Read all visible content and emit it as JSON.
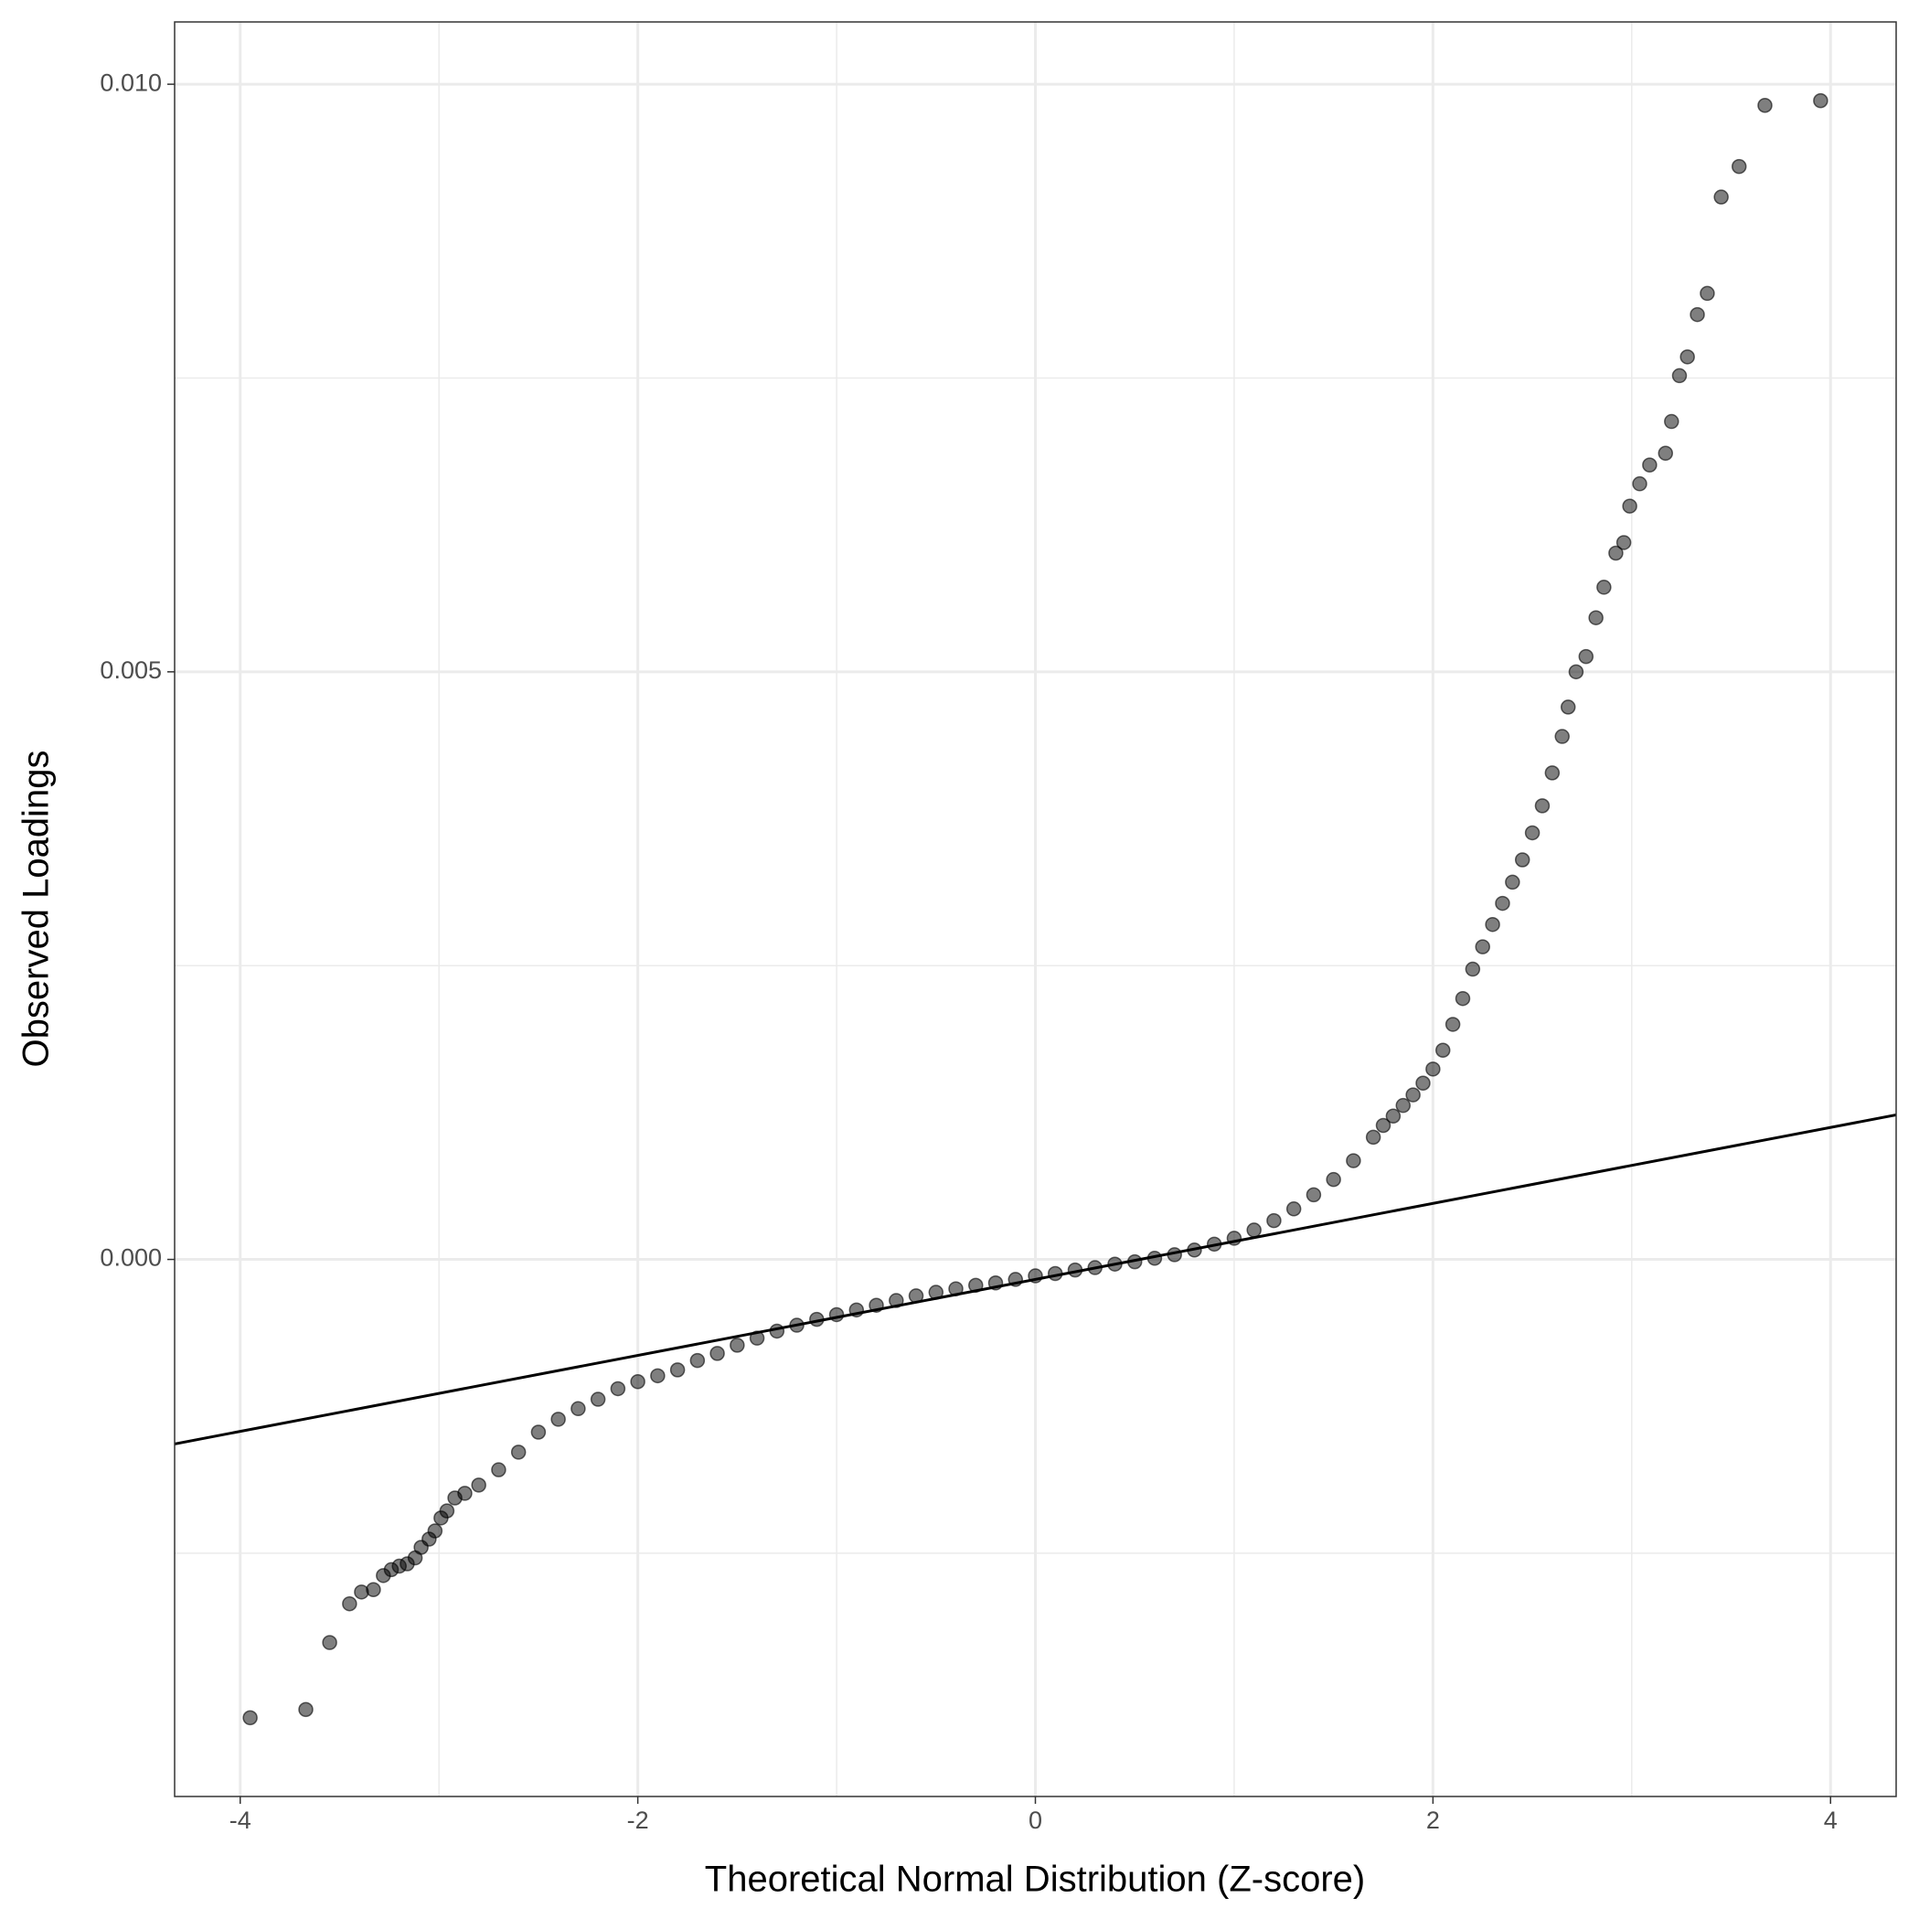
{
  "chart_data": {
    "type": "scatter",
    "x_label": "Theoretical Normal Distribution (Z-score)",
    "y_label": "Observed Loadings",
    "xlim": [
      -4.33,
      4.33
    ],
    "ylim": [
      -0.00457,
      0.01053
    ],
    "xticks": [
      -4,
      -2,
      0,
      2,
      4
    ],
    "yticks": [
      {
        "value": 0,
        "label": "0.000"
      },
      {
        "value": 0.005,
        "label": "0.005"
      },
      {
        "value": 0.01,
        "label": "0.010"
      }
    ],
    "x_minor_grid": [
      -3,
      -1,
      1,
      3
    ],
    "y_minor_grid": [
      -0.0025,
      0.0025,
      0.0075
    ],
    "grid": true,
    "color": "#000000",
    "reference_line": {
      "x": [
        -4.33,
        4.33
      ],
      "y": [
        -0.00157,
        0.00123
      ],
      "color": "#000000"
    },
    "x": [
      -3.95,
      -3.67,
      -3.55,
      -3.45,
      -3.39,
      -3.33,
      -3.28,
      -3.24,
      -3.2,
      -3.16,
      -3.12,
      -3.09,
      -3.05,
      -3.02,
      -2.99,
      -2.96,
      -2.92,
      -2.87,
      -2.8,
      -2.7,
      -2.6,
      -2.5,
      -2.4,
      -2.3,
      -2.2,
      -2.1,
      -2.0,
      -1.9,
      -1.8,
      -1.7,
      -1.6,
      -1.5,
      -1.4,
      -1.3,
      -1.2,
      -1.1,
      -1.0,
      -0.9,
      -0.8,
      -0.7,
      -0.6,
      -0.5,
      -0.4,
      -0.3,
      -0.2,
      -0.1,
      0,
      0.1,
      0.2,
      0.3,
      0.4,
      0.5,
      0.6,
      0.7,
      0.8,
      0.9,
      1.0,
      1.1,
      1.2,
      1.3,
      1.4,
      1.5,
      1.6,
      1.7,
      1.75,
      1.8,
      1.85,
      1.9,
      1.95,
      2.0,
      2.05,
      2.1,
      2.15,
      2.2,
      2.25,
      2.3,
      2.35,
      2.4,
      2.45,
      2.5,
      2.55,
      2.6,
      2.65,
      2.68,
      2.72,
      2.77,
      2.82,
      2.86,
      2.92,
      2.96,
      2.99,
      3.04,
      3.09,
      3.17,
      3.2,
      3.24,
      3.28,
      3.33,
      3.38,
      3.45,
      3.54,
      3.67,
      3.95
    ],
    "values": [
      -0.0039,
      -0.00383,
      -0.00326,
      -0.00293,
      -0.00283,
      -0.00281,
      -0.00269,
      -0.00264,
      -0.00261,
      -0.00259,
      -0.00254,
      -0.00245,
      -0.00238,
      -0.00231,
      -0.0022,
      -0.00214,
      -0.00203,
      -0.00199,
      -0.00192,
      -0.00179,
      -0.00164,
      -0.00147,
      -0.00136,
      -0.00127,
      -0.00119,
      -0.0011,
      -0.00104,
      -0.00099,
      -0.00094,
      -0.00086,
      -0.0008,
      -0.00073,
      -0.00067,
      -0.00061,
      -0.00056,
      -0.00051,
      -0.00047,
      -0.00043,
      -0.00039,
      -0.00035,
      -0.00031,
      -0.00028,
      -0.00025,
      -0.00022,
      -0.0002,
      -0.00017,
      -0.00014,
      -0.00012,
      -9e-05,
      -7e-05,
      -4e-05,
      -2e-05,
      1e-05,
      4e-05,
      8e-05,
      0.00013,
      0.00018,
      0.00025,
      0.00033,
      0.00043,
      0.00055,
      0.00068,
      0.00084,
      0.00104,
      0.00114,
      0.00122,
      0.00131,
      0.0014,
      0.0015,
      0.00162,
      0.00178,
      0.002,
      0.00222,
      0.00247,
      0.00266,
      0.00285,
      0.00303,
      0.00321,
      0.0034,
      0.00363,
      0.00386,
      0.00414,
      0.00445,
      0.0047,
      0.005,
      0.00513,
      0.00546,
      0.00572,
      0.00601,
      0.0061,
      0.00641,
      0.0066,
      0.00676,
      0.00686,
      0.00713,
      0.00752,
      0.00768,
      0.00804,
      0.00822,
      0.00904,
      0.0093,
      0.00982,
      0.00986
    ]
  }
}
